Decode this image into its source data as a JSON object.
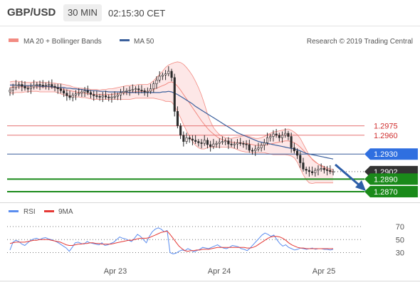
{
  "header": {
    "symbol": "GBP/USD",
    "timeframe": "30 MIN",
    "time": "02:15:30 CET"
  },
  "legend": {
    "bb_label": "MA 20 + Bollinger Bands",
    "ma50_label": "MA 50",
    "credit": "Research © 2019 Trading Central"
  },
  "rsi_legend": {
    "rsi_label": "RSI",
    "ma_label": "9MA"
  },
  "colors": {
    "bull": "#f7e4e4",
    "bear": "#2b2b2b",
    "bb": "#f28b82",
    "bb_fill": "#fde3e3",
    "ma50": "#3a5f9c",
    "resist": "#e57373",
    "support": "#1a8a1a",
    "pivot": "#2f6fe0",
    "arrow": "#2d5ea8",
    "rsi": "#5b8def",
    "rsi_ma": "#e53935",
    "last": "#333333"
  },
  "chart_data": [
    {
      "type": "candlestick",
      "title": "GBP/USD",
      "x_tick_labels": [
        "Apr 23",
        "Apr 24",
        "Apr 25"
      ],
      "price_levels": [
        {
          "value": 1.2975,
          "label": "1.2975",
          "kind": "resistance"
        },
        {
          "value": 1.296,
          "label": "1.2960",
          "kind": "resistance"
        },
        {
          "value": 1.293,
          "label": "1.2930",
          "kind": "pivot"
        },
        {
          "value": 1.2902,
          "label": "1.2902",
          "kind": "last"
        },
        {
          "value": 1.289,
          "label": "1.2890",
          "kind": "support"
        },
        {
          "value": 1.287,
          "label": "1.2870",
          "kind": "support"
        }
      ],
      "close": [
        1.3032,
        1.3036,
        1.304,
        1.3041,
        1.3038,
        1.3035,
        1.3034,
        1.3037,
        1.304,
        1.3041,
        1.304,
        1.3039,
        1.304,
        1.3041,
        1.3038,
        1.3036,
        1.3034,
        1.3031,
        1.3027,
        1.3023,
        1.302,
        1.3024,
        1.3026,
        1.3027,
        1.3029,
        1.3031,
        1.3028,
        1.3025,
        1.3023,
        1.3022,
        1.3021,
        1.3023,
        1.3021,
        1.302,
        1.3021,
        1.3022,
        1.3024,
        1.3028,
        1.303,
        1.3031,
        1.3032,
        1.3033,
        1.3034,
        1.3032,
        1.3031,
        1.3029,
        1.303,
        1.3034,
        1.3042,
        1.3048,
        1.3054,
        1.3056,
        1.3058,
        1.3062,
        1.3052,
        1.2998,
        1.2975,
        1.296,
        1.295,
        1.2956,
        1.2954,
        1.2952,
        1.295,
        1.2948,
        1.2947,
        1.2952,
        1.2945,
        1.2942,
        1.2946,
        1.2947,
        1.2949,
        1.295,
        1.2951,
        1.2946,
        1.2945,
        1.2946,
        1.2948,
        1.2947,
        1.2946,
        1.2945,
        1.2936,
        1.2935,
        1.2938,
        1.294,
        1.2944,
        1.2948,
        1.2956,
        1.2958,
        1.2962,
        1.296,
        1.2956,
        1.296,
        1.2963,
        1.2958,
        1.294,
        1.2935,
        1.2928,
        1.2916,
        1.2906,
        1.2904,
        1.2902,
        1.29,
        1.2904,
        1.2906,
        1.2907,
        1.2905,
        1.2904,
        1.2902,
        1.2902
      ],
      "ma20_upper": [
        1.3045,
        1.3046,
        1.3046,
        1.3046,
        1.3045,
        1.3044,
        1.3044,
        1.3044,
        1.3045,
        1.3045,
        1.3045,
        1.3044,
        1.3044,
        1.3044,
        1.3043,
        1.3043,
        1.3042,
        1.3042,
        1.3041,
        1.304,
        1.3039,
        1.3037,
        1.3036,
        1.3035,
        1.3035,
        1.3034,
        1.3034,
        1.3033,
        1.3033,
        1.3033,
        1.3032,
        1.3033,
        1.3033,
        1.3034,
        1.3034,
        1.3035,
        1.3036,
        1.3037,
        1.3038,
        1.3039,
        1.3039,
        1.304,
        1.304,
        1.3041,
        1.3041,
        1.3041,
        1.3041,
        1.3043,
        1.3047,
        1.3052,
        1.3057,
        1.3062,
        1.3068,
        1.3072,
        1.3074,
        1.3076,
        1.3077,
        1.3076,
        1.3073,
        1.3068,
        1.3062,
        1.3055,
        1.3046,
        1.3036,
        1.3024,
        1.301,
        1.2994,
        1.2982,
        1.2972,
        1.2966,
        1.2961,
        1.2958,
        1.2956,
        1.2955,
        1.2955,
        1.2956,
        1.2957,
        1.2958,
        1.2959,
        1.2959,
        1.2958,
        1.2956,
        1.2955,
        1.2955,
        1.2956,
        1.2958,
        1.2961,
        1.2963,
        1.2965,
        1.2966,
        1.2967,
        1.2968,
        1.2969,
        1.297,
        1.2968,
        1.2965,
        1.2961,
        1.2955,
        1.2946,
        1.2937,
        1.2928,
        1.2921,
        1.2917,
        1.2914,
        1.2912,
        1.291,
        1.2908,
        1.2906,
        1.2906
      ],
      "ma20_mid": [
        1.3036,
        1.3037,
        1.3037,
        1.3037,
        1.3037,
        1.3037,
        1.3037,
        1.3037,
        1.3037,
        1.3037,
        1.3037,
        1.3037,
        1.3037,
        1.3037,
        1.3036,
        1.3036,
        1.3035,
        1.3034,
        1.3033,
        1.3032,
        1.3031,
        1.303,
        1.3029,
        1.3028,
        1.3028,
        1.3027,
        1.3026,
        1.3026,
        1.3025,
        1.3025,
        1.3025,
        1.3025,
        1.3025,
        1.3025,
        1.3025,
        1.3026,
        1.3026,
        1.3027,
        1.3027,
        1.3028,
        1.3028,
        1.3029,
        1.3029,
        1.303,
        1.303,
        1.303,
        1.303,
        1.3031,
        1.3033,
        1.3035,
        1.3037,
        1.3039,
        1.3041,
        1.3044,
        1.3045,
        1.3043,
        1.3038,
        1.3032,
        1.3025,
        1.3018,
        1.3011,
        1.3004,
        1.2997,
        1.299,
        1.2983,
        1.2977,
        1.2971,
        1.2966,
        1.2962,
        1.2958,
        1.2955,
        1.2953,
        1.2951,
        1.295,
        1.2949,
        1.2948,
        1.2948,
        1.2948,
        1.2947,
        1.2947,
        1.2946,
        1.2945,
        1.2944,
        1.2944,
        1.2944,
        1.2944,
        1.2945,
        1.2946,
        1.2947,
        1.2948,
        1.2949,
        1.295,
        1.2951,
        1.2951,
        1.295,
        1.2948,
        1.2945,
        1.2941,
        1.2936,
        1.2931,
        1.2927,
        1.2922,
        1.2918,
        1.2914,
        1.2911,
        1.2908,
        1.2905,
        1.2903,
        1.2902
      ],
      "ma20_lower": [
        1.3027,
        1.3027,
        1.3028,
        1.3028,
        1.3028,
        1.3029,
        1.3029,
        1.303,
        1.303,
        1.303,
        1.3029,
        1.3029,
        1.3029,
        1.3029,
        1.3029,
        1.3029,
        1.3028,
        1.3026,
        1.3024,
        1.3023,
        1.3022,
        1.3021,
        1.3021,
        1.3021,
        1.302,
        1.302,
        1.3019,
        1.3018,
        1.3017,
        1.3017,
        1.3017,
        1.3017,
        1.3017,
        1.3017,
        1.3017,
        1.3017,
        1.3017,
        1.3017,
        1.3017,
        1.3017,
        1.3017,
        1.3018,
        1.3019,
        1.3019,
        1.3019,
        1.3019,
        1.3019,
        1.3019,
        1.3019,
        1.3018,
        1.3017,
        1.3016,
        1.3014,
        1.3014,
        1.3013,
        1.3007,
        1.2997,
        1.2988,
        1.2977,
        1.2967,
        1.2958,
        1.295,
        1.2944,
        1.294,
        1.2938,
        1.2938,
        1.294,
        1.2941,
        1.2941,
        1.2941,
        1.2941,
        1.2941,
        1.2941,
        1.2941,
        1.294,
        1.2939,
        1.2937,
        1.2935,
        1.2934,
        1.2933,
        1.2933,
        1.2932,
        1.2932,
        1.2932,
        1.2932,
        1.2932,
        1.2931,
        1.293,
        1.2929,
        1.2929,
        1.2929,
        1.2929,
        1.2929,
        1.2928,
        1.2927,
        1.2924,
        1.2917,
        1.2907,
        1.2897,
        1.2889,
        1.2884,
        1.2883,
        1.2884,
        1.2884,
        1.2884,
        1.2884,
        1.2884,
        1.2884,
        1.2884
      ],
      "ma50": [
        1.304,
        1.304,
        1.304,
        1.3039,
        1.3039,
        1.3039,
        1.3039,
        1.3039,
        1.3039,
        1.3039,
        1.3038,
        1.3038,
        1.3038,
        1.3038,
        1.3037,
        1.3037,
        1.3036,
        1.3036,
        1.3036,
        1.3035,
        1.3035,
        1.3034,
        1.3034,
        1.3033,
        1.3033,
        1.3032,
        1.3032,
        1.3031,
        1.3031,
        1.3031,
        1.303,
        1.303,
        1.303,
        1.3029,
        1.3029,
        1.3029,
        1.3029,
        1.3029,
        1.3029,
        1.3029,
        1.3028,
        1.3028,
        1.3028,
        1.3028,
        1.3028,
        1.3028,
        1.3028,
        1.3028,
        1.3028,
        1.3028,
        1.3028,
        1.3029,
        1.3029,
        1.303,
        1.3029,
        1.3027,
        1.3025,
        1.3022,
        1.3019,
        1.3016,
        1.3013,
        1.301,
        1.3006,
        1.3003,
        1.3,
        1.2997,
        1.2994,
        1.2991,
        1.2988,
        1.2985,
        1.2982,
        1.2979,
        1.2976,
        1.2973,
        1.297,
        1.2967,
        1.2964,
        1.2962,
        1.296,
        1.2958,
        1.2956,
        1.2954,
        1.2952,
        1.295,
        1.2949,
        1.2948,
        1.2947,
        1.2946,
        1.2945,
        1.2944,
        1.2943,
        1.2942,
        1.2941,
        1.294,
        1.2939,
        1.2938,
        1.2937,
        1.2935,
        1.2933,
        1.2931,
        1.293,
        1.2929,
        1.2928,
        1.2927,
        1.2926,
        1.2925,
        1.2924,
        1.2923,
        1.2922
      ]
    },
    {
      "type": "line",
      "title": "RSI",
      "y_ticks": [
        30,
        50,
        70
      ],
      "x_tick_labels": [
        "Apr 23",
        "Apr 24",
        "Apr 25"
      ],
      "series": [
        {
          "name": "RSI",
          "values": [
            34,
            46,
            49,
            47,
            43,
            41,
            45,
            49,
            51,
            52,
            50,
            52,
            53,
            51,
            50,
            48,
            46,
            43,
            40,
            37,
            32,
            38,
            45,
            46,
            44,
            43,
            47,
            45,
            44,
            43,
            42,
            45,
            41,
            42,
            44,
            46,
            50,
            54,
            52,
            51,
            49,
            47,
            52,
            58,
            55,
            50,
            45,
            55,
            62,
            66,
            68,
            66,
            62,
            64,
            30,
            28,
            29,
            32,
            34,
            33,
            36,
            34,
            31,
            33,
            35,
            38,
            37,
            36,
            38,
            40,
            42,
            39,
            37,
            36,
            38,
            41,
            40,
            39,
            36,
            35,
            33,
            37,
            42,
            47,
            52,
            57,
            60,
            58,
            55,
            57,
            50,
            44,
            40,
            42,
            38,
            36,
            34,
            35,
            37,
            36,
            35,
            36,
            37,
            35,
            36,
            36,
            35,
            35,
            34,
            35
          ]
        },
        {
          "name": "9MA",
          "values": [
            44,
            45,
            46,
            46,
            46,
            46,
            47,
            48,
            49,
            49,
            50,
            50,
            50,
            50,
            49,
            48,
            47,
            46,
            44,
            42,
            41,
            41,
            42,
            43,
            43,
            44,
            44,
            45,
            45,
            44,
            44,
            43,
            43,
            43,
            43,
            44,
            45,
            46,
            47,
            48,
            49,
            49,
            50,
            51,
            52,
            52,
            52,
            53,
            55,
            57,
            59,
            61,
            62,
            63,
            58,
            52,
            46,
            40,
            36,
            33,
            32,
            33,
            33,
            34,
            34,
            35,
            35,
            35,
            36,
            37,
            38,
            38,
            38,
            38,
            38,
            38,
            38,
            38,
            38,
            38,
            37,
            37,
            38,
            40,
            43,
            46,
            49,
            52,
            54,
            55,
            55,
            54,
            52,
            49,
            45,
            42,
            40,
            38,
            37,
            37,
            36,
            36,
            36,
            36,
            36,
            36,
            36,
            36,
            36,
            36
          ]
        }
      ]
    }
  ]
}
